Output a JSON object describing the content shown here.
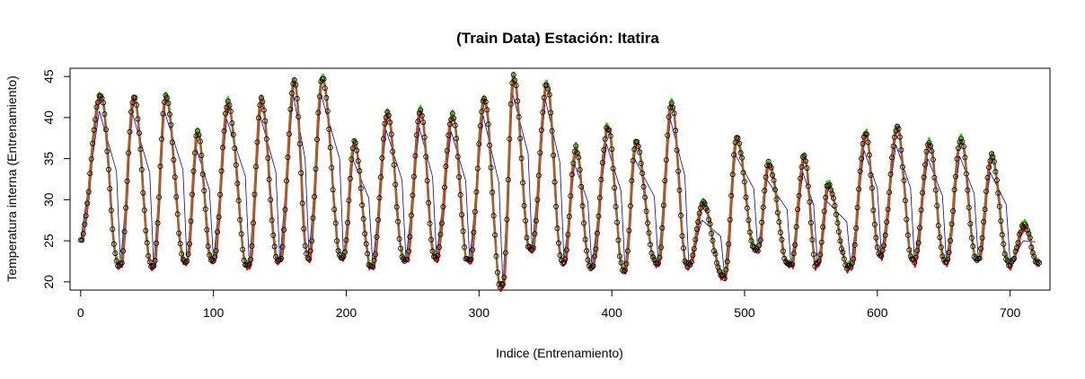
{
  "chart_data": {
    "type": "line",
    "title": "(Train Data) Estación: Itatira",
    "xlabel": "Indice (Entrenamiento)",
    "ylabel": "Temperatura interna (Entrenamiento)",
    "xlim": [
      -8,
      730
    ],
    "ylim": [
      19,
      46
    ],
    "xticks": [
      0,
      100,
      200,
      300,
      400,
      500,
      600,
      700
    ],
    "yticks": [
      20,
      25,
      30,
      35,
      40,
      45
    ],
    "legend": "none",
    "grid": false,
    "series_styles": {
      "observed": {
        "name": "observed points",
        "marker": "open circle",
        "color": "#000000"
      },
      "model_green": {
        "name": "prediction (green)",
        "color": "#33cc00"
      },
      "model_red": {
        "name": "prediction (red)",
        "color": "#ff0000"
      },
      "model_brown": {
        "name": "prediction (brown)",
        "color": "#996633"
      },
      "model_blue": {
        "name": "prediction (blue)",
        "color": "#0000cc"
      }
    },
    "cycles": [
      [
        0,
        25,
        15,
        42.8,
        30,
        22
      ],
      [
        30,
        22,
        40,
        42.5,
        55,
        22
      ],
      [
        55,
        22,
        64,
        42.8,
        80,
        22.5
      ],
      [
        80,
        22.5,
        88,
        38.3,
        100,
        22.5
      ],
      [
        100,
        22.5,
        111,
        41.8,
        127,
        22
      ],
      [
        127,
        22,
        136,
        42.3,
        150,
        22.5
      ],
      [
        150,
        22.5,
        161,
        44.8,
        172,
        23
      ],
      [
        172,
        23,
        182,
        44.8,
        198,
        23
      ],
      [
        198,
        23,
        206,
        36.9,
        220,
        22
      ],
      [
        220,
        22,
        231,
        40.5,
        245,
        22.5
      ],
      [
        245,
        22.5,
        256,
        40.8,
        268,
        23
      ],
      [
        268,
        23,
        280,
        40.3,
        293,
        22.5
      ],
      [
        293,
        22.5,
        304,
        42.3,
        318,
        19.5
      ],
      [
        318,
        19.5,
        326,
        45.1,
        340,
        24
      ],
      [
        340,
        24,
        351,
        44.2,
        364,
        22.5
      ],
      [
        364,
        22.5,
        373,
        36.3,
        385,
        21.8
      ],
      [
        385,
        21.8,
        397,
        38.8,
        410,
        21.5
      ],
      [
        410,
        21.5,
        418,
        37,
        435,
        22.3
      ],
      [
        435,
        22.3,
        445,
        41.8,
        458,
        22
      ],
      [
        458,
        22,
        469,
        29.5,
        485,
        20.7
      ],
      [
        485,
        20.7,
        494,
        37.5,
        510,
        23.8
      ],
      [
        510,
        23.8,
        518,
        34.4,
        535,
        22
      ],
      [
        535,
        22,
        545,
        35.3,
        555,
        22
      ],
      [
        555,
        22,
        563,
        31.8,
        580,
        21.8
      ],
      [
        580,
        21.8,
        591,
        38,
        603,
        23.3
      ],
      [
        603,
        23.3,
        615,
        38.7,
        628,
        22.5
      ],
      [
        628,
        22.5,
        639,
        37,
        652,
        22.5
      ],
      [
        652,
        22.5,
        663,
        37.3,
        676,
        22.7
      ],
      [
        676,
        22.7,
        686,
        35.3,
        700,
        22.3
      ],
      [
        700,
        22.3,
        711,
        27,
        722,
        22.3
      ]
    ]
  }
}
